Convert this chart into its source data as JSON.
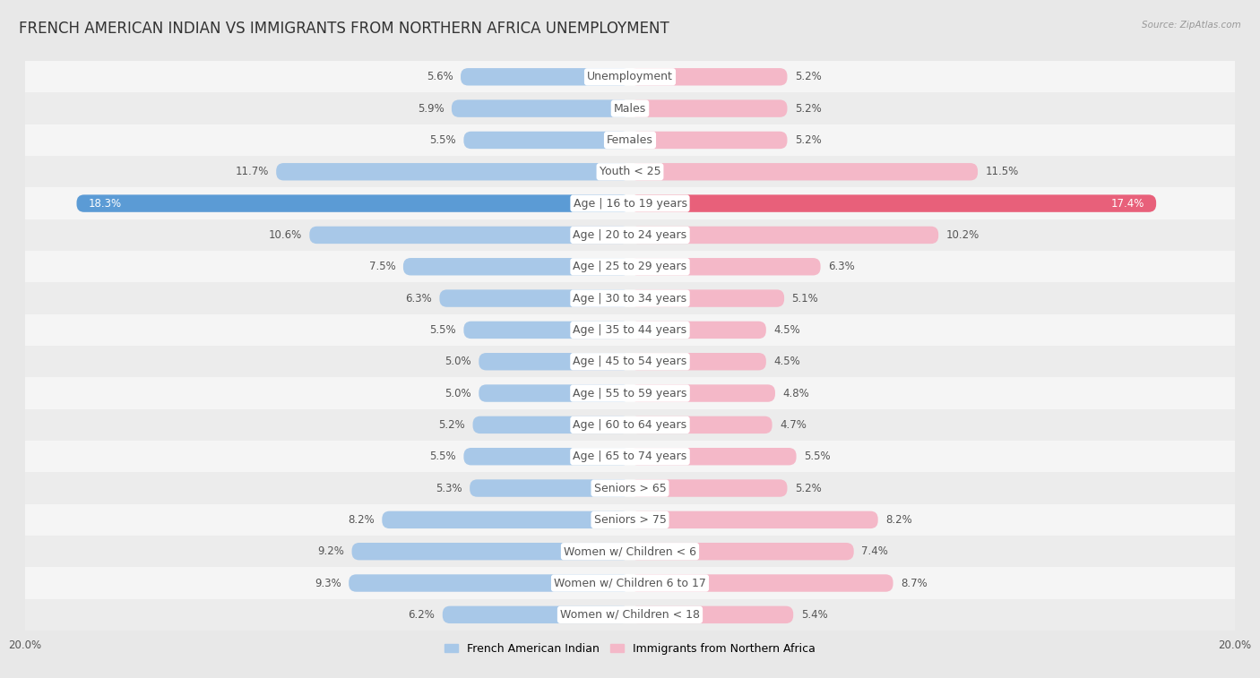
{
  "title": "FRENCH AMERICAN INDIAN VS IMMIGRANTS FROM NORTHERN AFRICA UNEMPLOYMENT",
  "source": "Source: ZipAtlas.com",
  "categories": [
    "Unemployment",
    "Males",
    "Females",
    "Youth < 25",
    "Age | 16 to 19 years",
    "Age | 20 to 24 years",
    "Age | 25 to 29 years",
    "Age | 30 to 34 years",
    "Age | 35 to 44 years",
    "Age | 45 to 54 years",
    "Age | 55 to 59 years",
    "Age | 60 to 64 years",
    "Age | 65 to 74 years",
    "Seniors > 65",
    "Seniors > 75",
    "Women w/ Children < 6",
    "Women w/ Children 6 to 17",
    "Women w/ Children < 18"
  ],
  "left_values": [
    5.6,
    5.9,
    5.5,
    11.7,
    18.3,
    10.6,
    7.5,
    6.3,
    5.5,
    5.0,
    5.0,
    5.2,
    5.5,
    5.3,
    8.2,
    9.2,
    9.3,
    6.2
  ],
  "right_values": [
    5.2,
    5.2,
    5.2,
    11.5,
    17.4,
    10.2,
    6.3,
    5.1,
    4.5,
    4.5,
    4.8,
    4.7,
    5.5,
    5.2,
    8.2,
    7.4,
    8.7,
    5.4
  ],
  "left_color_normal": "#a8c8e8",
  "left_color_highlight": "#5b9bd5",
  "right_color_normal": "#f4b8c8",
  "right_color_highlight": "#e8607a",
  "left_label": "French American Indian",
  "right_label": "Immigrants from Northern Africa",
  "bg_color": "#e8e8e8",
  "row_colors": [
    "#f5f5f5",
    "#ececec"
  ],
  "axis_limit": 20.0,
  "title_fontsize": 12,
  "label_fontsize": 9,
  "value_fontsize": 8.5,
  "highlight_row": 4,
  "bar_height": 0.55
}
